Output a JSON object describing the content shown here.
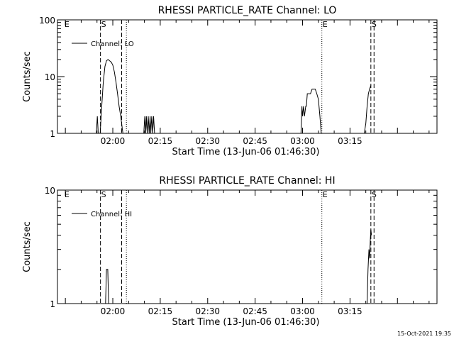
{
  "footer": {
    "timestamp": "15-Oct-2021 19:35"
  },
  "chart_data": [
    {
      "type": "line",
      "title": "RHESSI PARTICLE_RATE Channel: LO",
      "xlabel": "Start Time (13-Jun-06 01:46:30)",
      "ylabel": "Counts/sec",
      "yscale": "log",
      "ylim": [
        1,
        100
      ],
      "xlim_minutes": [
        -17.5,
        102.5
      ],
      "xticks": [
        {
          "t": 0,
          "label": "02:00"
        },
        {
          "t": 15,
          "label": "02:15"
        },
        {
          "t": 30,
          "label": "02:30"
        },
        {
          "t": 45,
          "label": "02:45"
        },
        {
          "t": 60,
          "label": "03:00"
        },
        {
          "t": 75,
          "label": "03:15"
        }
      ],
      "yticks": [
        {
          "v": 1,
          "label": "1"
        },
        {
          "v": 10,
          "label": "10"
        },
        {
          "v": 100,
          "label": "100"
        }
      ],
      "legend": {
        "label": "Channel: LO",
        "position": "top-left"
      },
      "markers": [
        {
          "t": -15.5,
          "style": "none",
          "label": "E"
        },
        {
          "t": -3.9,
          "style": "dashed",
          "label": "S"
        },
        {
          "t": 2.8,
          "style": "dashed",
          "label": ""
        },
        {
          "t": 4.3,
          "style": "dotted",
          "label": ""
        },
        {
          "t": 66.1,
          "style": "dotted",
          "label": "E"
        },
        {
          "t": 81.6,
          "style": "dashed",
          "label": "S"
        },
        {
          "t": 82.6,
          "style": "dashed",
          "label": ""
        }
      ],
      "series": [
        {
          "name": "Channel: LO",
          "t": [
            -5.2,
            -4.9,
            -4.6,
            -4.3,
            -4.0,
            -3.5,
            -3.0,
            -2.5,
            -2.0,
            -1.5,
            -1.0,
            -0.5,
            0.0,
            0.5,
            1.0,
            1.5,
            2.0,
            2.5,
            2.8,
            3.0,
            3.2,
            null,
            9.8,
            10.1,
            10.4,
            10.6,
            10.9,
            11.2,
            11.5,
            11.8,
            12.0,
            12.3,
            12.6,
            12.9,
            13.2,
            null,
            59.5,
            59.8,
            60.0,
            60.3,
            60.6,
            61.0,
            61.2,
            61.5,
            62.0,
            62.5,
            63.0,
            63.5,
            64.0,
            64.5,
            65.0,
            65.5,
            65.9,
            null,
            79.5,
            80.0,
            80.4,
            80.8,
            81.2,
            81.6
          ],
          "values": [
            1,
            2,
            1,
            1,
            1,
            3,
            8,
            15,
            19,
            20,
            19,
            18,
            16,
            12,
            8,
            5,
            3,
            2,
            1.5,
            1.2,
            1,
            null,
            1,
            2,
            1,
            2,
            1,
            2,
            1,
            2,
            1,
            2,
            1,
            2,
            1,
            null,
            1,
            3,
            2,
            3,
            2,
            3,
            3,
            5,
            5,
            5,
            6,
            6,
            6,
            5,
            4,
            2,
            1,
            null,
            1,
            1.5,
            3,
            5,
            6,
            7
          ]
        }
      ]
    },
    {
      "type": "line",
      "title": "RHESSI PARTICLE_RATE Channel: HI",
      "xlabel": "Start Time (13-Jun-06 01:46:30)",
      "ylabel": "Counts/sec",
      "yscale": "log",
      "ylim": [
        1,
        10
      ],
      "xlim_minutes": [
        -17.5,
        102.5
      ],
      "xticks": [
        {
          "t": 0,
          "label": "02:00"
        },
        {
          "t": 15,
          "label": "02:15"
        },
        {
          "t": 30,
          "label": "02:30"
        },
        {
          "t": 45,
          "label": "02:45"
        },
        {
          "t": 60,
          "label": "03:00"
        },
        {
          "t": 75,
          "label": "03:15"
        }
      ],
      "yticks": [
        {
          "v": 1,
          "label": "1"
        },
        {
          "v": 10,
          "label": "10"
        }
      ],
      "legend": {
        "label": "Channel: HI",
        "position": "top-left"
      },
      "markers": [
        {
          "t": -15.5,
          "style": "none",
          "label": "E"
        },
        {
          "t": -3.9,
          "style": "dashed",
          "label": "S"
        },
        {
          "t": 2.8,
          "style": "dashed",
          "label": ""
        },
        {
          "t": 4.3,
          "style": "dotted",
          "label": ""
        },
        {
          "t": 66.1,
          "style": "dotted",
          "label": "E"
        },
        {
          "t": 81.6,
          "style": "dashed",
          "label": "S"
        },
        {
          "t": 82.6,
          "style": "dashed",
          "label": ""
        }
      ],
      "series": [
        {
          "name": "Channel: HI",
          "t": [
            -2.3,
            -2.0,
            -1.6,
            -1.3,
            -1.0,
            null,
            80.4,
            80.7,
            81.0,
            81.2,
            81.4,
            81.6,
            81.8
          ],
          "values": [
            1,
            2,
            2,
            1,
            1,
            null,
            1,
            2,
            3,
            2.5,
            3.5,
            4.5,
            4
          ]
        }
      ]
    }
  ]
}
